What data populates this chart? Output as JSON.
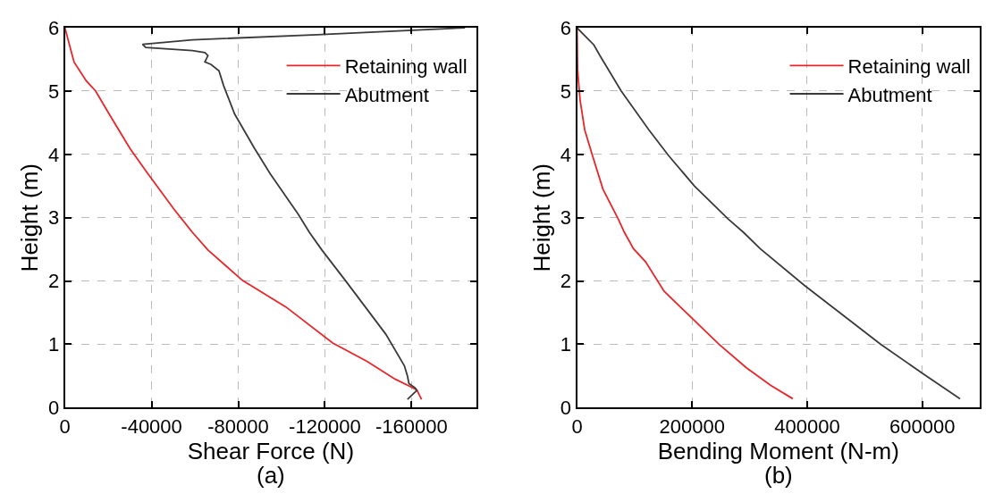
{
  "chart_data": [
    {
      "type": "line",
      "xlabel": "Shear Force (N)",
      "ylabel": "Height (m)",
      "annotations": [
        "(a)"
      ],
      "xlim": [
        0,
        -190000
      ],
      "xticks": [
        0,
        -40000,
        -80000,
        -120000,
        -160000
      ],
      "ylim": [
        0,
        6
      ],
      "yticks": [
        0,
        1,
        2,
        3,
        4,
        5,
        6
      ],
      "grid": true,
      "legend": "top right",
      "series": [
        {
          "name": "Retaining wall",
          "color": "#e8262a",
          "x": [
            0,
            -4200,
            -9900,
            -14200,
            -20000,
            -30100,
            -38000,
            -50200,
            -58800,
            -66000,
            -81900,
            -102000,
            -123600,
            -139400,
            -152400,
            -159600,
            -162400,
            -164600
          ],
          "values": [
            6.0,
            5.46,
            5.16,
            5.0,
            4.66,
            4.09,
            3.71,
            3.14,
            2.77,
            2.49,
            2.01,
            1.59,
            1.02,
            0.73,
            0.45,
            0.33,
            0.28,
            0.13
          ]
        },
        {
          "name": "Abutment",
          "color": "#3a3a3a",
          "x": [
            -184700,
            -116400,
            -58800,
            -35800,
            -37300,
            -58800,
            -64600,
            -66000,
            -64600,
            -67500,
            -71100,
            -73200,
            -78300,
            -87600,
            -94800,
            -107800,
            -112800,
            -118600,
            -129400,
            -148100,
            -156700,
            -158100,
            -158800,
            -161700,
            -162400,
            -158100
          ],
          "values": [
            6.0,
            5.89,
            5.81,
            5.74,
            5.69,
            5.64,
            5.61,
            5.56,
            5.46,
            5.42,
            5.32,
            5.09,
            4.64,
            4.09,
            3.69,
            3.05,
            2.77,
            2.49,
            2.01,
            1.16,
            0.66,
            0.5,
            0.38,
            0.31,
            0.27,
            0.13
          ]
        }
      ]
    },
    {
      "type": "line",
      "xlabel": "Bending Moment (N-m)",
      "ylabel": "Height (m)",
      "annotations": [
        "(b)"
      ],
      "xlim": [
        0,
        700000
      ],
      "xticks": [
        0,
        200000,
        400000,
        600000
      ],
      "ylim": [
        0,
        6
      ],
      "yticks": [
        0,
        1,
        2,
        3,
        4,
        5,
        6
      ],
      "grid": true,
      "legend": "top right",
      "series": [
        {
          "name": "Retaining wall",
          "color": "#e8262a",
          "x": [
            0,
            1000,
            5300,
            13300,
            26500,
            45100,
            71600,
            82200,
            98100,
            119400,
            151200,
            198900,
            246700,
            294400,
            336800,
            375000
          ],
          "values": [
            6.0,
            5.33,
            4.86,
            4.39,
            3.99,
            3.45,
            2.98,
            2.77,
            2.51,
            2.3,
            1.84,
            1.42,
            1.0,
            0.63,
            0.35,
            0.14
          ]
        },
        {
          "name": "Abutment",
          "color": "#3a3a3a",
          "x": [
            0,
            29200,
            39800,
            76900,
            124700,
            159200,
            204200,
            262600,
            289100,
            318300,
            395200,
            527900,
            602100,
            665800
          ],
          "values": [
            6.0,
            5.73,
            5.56,
            5.0,
            4.39,
            3.98,
            3.5,
            2.98,
            2.77,
            2.51,
            1.93,
            1.0,
            0.53,
            0.14
          ]
        }
      ]
    }
  ]
}
